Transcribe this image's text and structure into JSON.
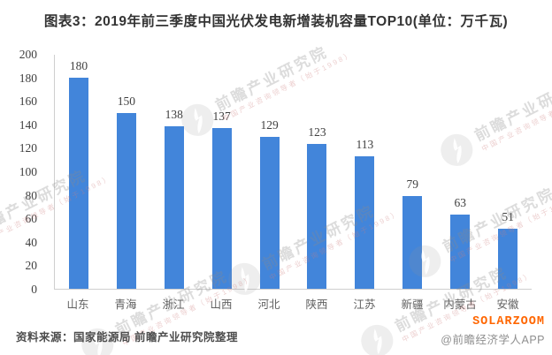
{
  "title": "图表3：2019年前三季度中国光伏发电新增装机容量TOP10(单位：万千瓦)",
  "chart_data": {
    "type": "bar",
    "title": "图表3：2019年前三季度中国光伏发电新增装机容量TOP10(单位：万千瓦)",
    "categories": [
      "山东",
      "青海",
      "浙江",
      "山西",
      "河北",
      "陕西",
      "江苏",
      "新疆",
      "内蒙古",
      "安徽"
    ],
    "values": [
      180,
      150,
      138,
      137,
      129,
      123,
      113,
      79,
      63,
      51
    ],
    "unit": "万千瓦",
    "xlabel": "",
    "ylabel": "",
    "ylim": [
      0,
      200
    ],
    "ytick_step": 20,
    "bar_color": "#4285da",
    "value_label_color": "#404040",
    "axis_line_color": "#cfcfcf",
    "grid": false,
    "legend": false,
    "value_labels": true
  },
  "watermark": {
    "logo_name": "qianzhan-bird-logo",
    "brand_text": "前瞻产业研究院",
    "brand_subtext": "中国产业咨询领导者（始于1998）"
  },
  "footer": {
    "source": "资料来源：国家能源局 前瞻产业研究院整理",
    "brand": "SOLARZOOM",
    "brand_color": "#ff6600",
    "app": "@前瞻经济学人APP"
  }
}
